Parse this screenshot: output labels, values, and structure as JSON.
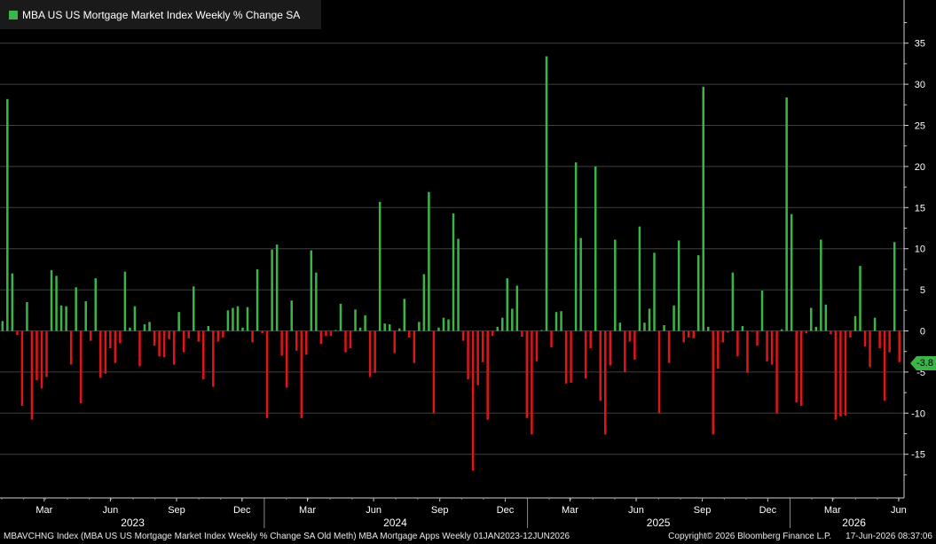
{
  "legend": {
    "label": "MBA US US Mortgage Market Index Weekly % Change SA",
    "color": "#3bb54a"
  },
  "colors": {
    "positive": "#3bb54a",
    "negative": "#e0141b",
    "grid": "#404040",
    "background": "#000000"
  },
  "last_value_label": "-3.8",
  "footer": {
    "left": "MBAVCHNG Index (MBA US US Mortgage Market Index Weekly % Change SA Old Meth) MBA Mortgage Apps Weekly 01JAN2023-12JUN2026",
    "copyright": "Copyright© 2026 Bloomberg Finance L.P.",
    "timestamp": "17-Jun-2026 08:37:06"
  },
  "chart_data": {
    "type": "bar",
    "title": "MBA US US Mortgage Market Index Weekly % Change SA",
    "y_axis_position": "right",
    "ylim": [
      -19,
      39
    ],
    "yticks": [
      35,
      30,
      25,
      20,
      15,
      10,
      5,
      0,
      -5,
      -10,
      -15
    ],
    "grid": true,
    "x_range": [
      0,
      1257
    ],
    "month_ticks": [
      {
        "label": "Mar",
        "day": 59
      },
      {
        "label": "Jun",
        "day": 151
      },
      {
        "label": "Sep",
        "day": 243
      },
      {
        "label": "Dec",
        "day": 334
      },
      {
        "label": "Mar",
        "day": 425
      },
      {
        "label": "Jun",
        "day": 517
      },
      {
        "label": "Sep",
        "day": 609
      },
      {
        "label": "Dec",
        "day": 700
      },
      {
        "label": "Mar",
        "day": 790
      },
      {
        "label": "Jun",
        "day": 882
      },
      {
        "label": "Sep",
        "day": 974
      },
      {
        "label": "Dec",
        "day": 1065
      },
      {
        "label": "Mar",
        "day": 1155
      },
      {
        "label": "Jun",
        "day": 1247
      }
    ],
    "year_labels": [
      {
        "label": "2023",
        "day": 182
      },
      {
        "label": "2024",
        "day": 547
      },
      {
        "label": "2025",
        "day": 913
      },
      {
        "label": "2026",
        "day": 1185
      }
    ],
    "year_boundaries": [
      365,
      731,
      1096
    ],
    "values": [
      1.2,
      28.2,
      7.0,
      -0.5,
      -9.1,
      3.5,
      -10.8,
      -6.0,
      -7.0,
      -5.6,
      7.4,
      6.7,
      3.1,
      3.0,
      -4.1,
      5.3,
      -8.8,
      3.6,
      -1.2,
      6.4,
      -5.7,
      -5.2,
      -2.1,
      -3.9,
      -1.5,
      7.2,
      0.4,
      3.0,
      -4.3,
      0.8,
      1.1,
      -1.8,
      -3.1,
      -3.2,
      -1.0,
      -4.1,
      2.3,
      -2.6,
      -0.9,
      5.4,
      -1.3,
      -5.9,
      0.6,
      -6.8,
      -1.3,
      -0.8,
      2.5,
      2.8,
      3.0,
      0.4,
      2.9,
      -1.4,
      7.5,
      -0.3,
      -10.6,
      9.9,
      10.5,
      -3.0,
      -6.9,
      3.7,
      -2.4,
      -10.6,
      -2.9,
      9.8,
      7.1,
      -1.6,
      -0.6,
      -0.6,
      0.1,
      3.3,
      -2.6,
      -2.1,
      2.6,
      0.4,
      1.9,
      -5.6,
      -5.1,
      15.7,
      0.9,
      0.8,
      -2.7,
      0.3,
      3.9,
      -0.8,
      -3.9,
      1.1,
      6.9,
      16.9,
      -10.0,
      0.4,
      1.6,
      1.4,
      14.3,
      11.2,
      -1.2,
      -5.9,
      -17.0,
      -6.6,
      -3.8,
      -10.8,
      -0.6,
      0.5,
      1.6,
      6.4,
      2.7,
      5.5,
      -0.7,
      -10.6,
      -12.6,
      -3.7,
      0.1,
      33.4,
      -2.0,
      2.3,
      2.4,
      -6.4,
      -6.3,
      20.5,
      11.3,
      -5.8,
      -2.1,
      20.0,
      -8.5,
      -12.6,
      -4.2,
      11.1,
      1.0,
      -5.0,
      -1.3,
      -3.5,
      12.7,
      1.0,
      2.7,
      9.5,
      -10.0,
      0.7,
      -3.9,
      3.1,
      11.0,
      -1.4,
      -0.8,
      -0.9,
      9.2,
      29.7,
      0.5,
      -12.6,
      -4.6,
      -1.4,
      -0.2,
      7.1,
      -3.1,
      0.6,
      -5.1,
      -0.1,
      -1.8,
      4.9,
      -3.7,
      -4.1,
      -10.0,
      0.2,
      28.4,
      14.2,
      -8.7,
      -9.1,
      -0.3,
      2.8,
      0.5,
      11.1,
      3.2,
      -0.4,
      -10.8,
      -10.4,
      -10.3,
      -0.8,
      1.8,
      7.9,
      -1.9,
      -4.4,
      1.6,
      -2.1,
      -8.5,
      -2.6,
      10.8,
      -3.8
    ]
  }
}
